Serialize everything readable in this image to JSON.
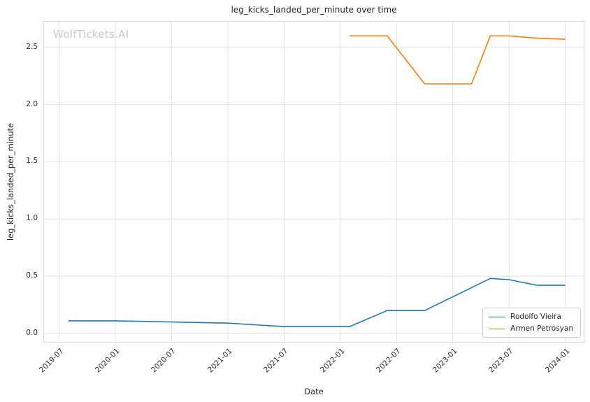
{
  "watermark": "WolfTickets.AI",
  "chart_data": {
    "type": "line",
    "title": "leg_kicks_landed_per_minute over time",
    "xlabel": "Date",
    "ylabel": "leg_kicks_landed_per_minute",
    "x_tick_labels": [
      "2019-07",
      "2020-01",
      "2020-07",
      "2021-01",
      "2021-07",
      "2022-01",
      "2022-07",
      "2023-01",
      "2023-07",
      "2024-01"
    ],
    "y_ticks": [
      0.0,
      0.5,
      1.0,
      1.5,
      2.0,
      2.5
    ],
    "y_tick_labels": [
      "0.0",
      "0.5",
      "1.0",
      "1.5",
      "2.0",
      "2.5"
    ],
    "xlim_decimal_years": [
      2019.36,
      2024.17
    ],
    "ylim": [
      -0.08,
      2.73
    ],
    "grid": true,
    "legend_position": "lower right",
    "series": [
      {
        "name": "Rodolfo Vieira",
        "color": "#1f77b4",
        "points": [
          [
            "2019-08",
            0.11
          ],
          [
            "2020-01",
            0.11
          ],
          [
            "2020-07",
            0.1
          ],
          [
            "2021-01",
            0.09
          ],
          [
            "2021-07",
            0.06
          ],
          [
            "2022-02",
            0.06
          ],
          [
            "2022-06",
            0.2
          ],
          [
            "2022-10",
            0.2
          ],
          [
            "2023-05",
            0.48
          ],
          [
            "2023-07",
            0.47
          ],
          [
            "2023-10",
            0.42
          ],
          [
            "2024-01",
            0.42
          ]
        ]
      },
      {
        "name": "Armen Petrosyan",
        "color": "#ff7f0e",
        "points": [
          [
            "2022-02",
            2.6
          ],
          [
            "2022-06",
            2.6
          ],
          [
            "2022-10",
            2.18
          ],
          [
            "2023-03",
            2.18
          ],
          [
            "2023-05",
            2.6
          ],
          [
            "2023-07",
            2.6
          ],
          [
            "2023-10",
            2.58
          ],
          [
            "2024-01",
            2.57
          ]
        ]
      }
    ]
  }
}
